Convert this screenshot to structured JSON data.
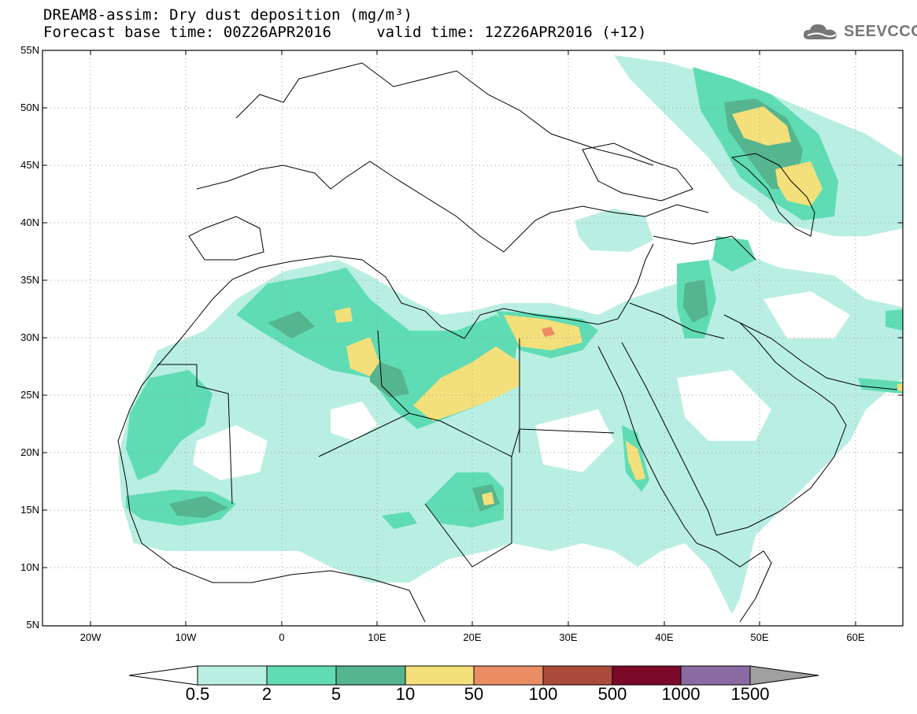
{
  "title_line1": "DREAM8-assim: Dry dust deposition (mg/m³)",
  "title_line2": "Forecast base time: 00Z26APR2016     valid time: 12Z26APR2016 (+12)",
  "logo_text": "SEEVCCC",
  "lat_labels": [
    "55N",
    "50N",
    "45N",
    "40N",
    "35N",
    "30N",
    "25N",
    "20N",
    "15N",
    "10N",
    "5N"
  ],
  "lon_labels": [
    "20W",
    "10W",
    "0",
    "10E",
    "20E",
    "30E",
    "40E",
    "50E",
    "60E"
  ],
  "colorbar": {
    "levels": [
      "0.5",
      "2",
      "5",
      "10",
      "50",
      "100",
      "500",
      "1000",
      "1500"
    ],
    "colors": [
      "#b9eee3",
      "#5fdcb4",
      "#55b58f",
      "#f4e07a",
      "#ea8c64",
      "#a94a3b",
      "#7a0a28",
      "#8a6aa0"
    ],
    "under_color": "#ffffff",
    "over_color": "#a0a0a0"
  },
  "dust_colors": {
    "c1": "#b9eee3",
    "c2": "#5fdcb4",
    "c3": "#55b58f",
    "c4": "#f4e07a",
    "c5": "#ea8c64"
  }
}
